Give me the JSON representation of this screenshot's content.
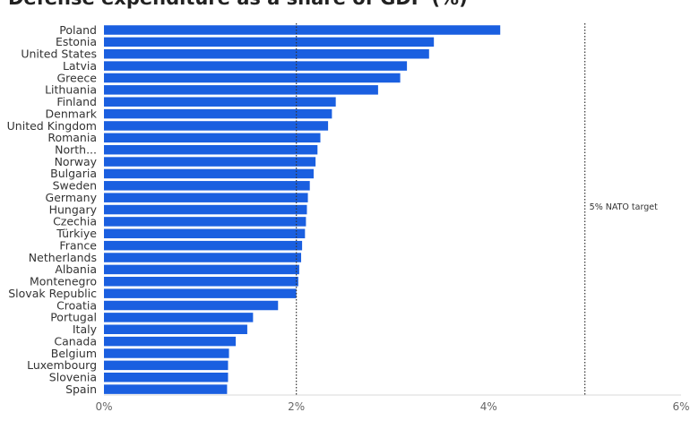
{
  "chart_data": {
    "type": "bar",
    "orientation": "horizontal",
    "title": "Defense expenditure as a share of GDP (%)",
    "categories": [
      "Poland",
      "Estonia",
      "United States",
      "Latvia",
      "Greece",
      "Lithuania",
      "Finland",
      "Denmark",
      "United Kingdom",
      "Romania",
      "North...",
      "Norway",
      "Bulgaria",
      "Sweden",
      "Germany",
      "Hungary",
      "Czechia",
      "Türkiye",
      "France",
      "Netherlands",
      "Albania",
      "Montenegro",
      "Slovak Republic",
      "Croatia",
      "Portugal",
      "Italy",
      "Canada",
      "Belgium",
      "Luxembourg",
      "Slovenia",
      "Spain"
    ],
    "values": [
      4.12,
      3.43,
      3.38,
      3.15,
      3.08,
      2.85,
      2.41,
      2.37,
      2.33,
      2.25,
      2.22,
      2.2,
      2.18,
      2.14,
      2.12,
      2.11,
      2.1,
      2.09,
      2.06,
      2.05,
      2.03,
      2.02,
      2.0,
      1.81,
      1.55,
      1.49,
      1.37,
      1.3,
      1.29,
      1.29,
      1.28
    ],
    "xlim": [
      0,
      6
    ],
    "xticks": [
      0,
      2,
      4,
      6
    ],
    "xtick_labels": [
      "0%",
      "2%",
      "4%",
      "6%"
    ],
    "reference_lines": [
      {
        "value": 2,
        "style": "dotted"
      },
      {
        "value": 5,
        "style": "dotted",
        "label": "5% NATO target"
      }
    ],
    "bar_color": "#1a5fe0",
    "grid": false
  }
}
